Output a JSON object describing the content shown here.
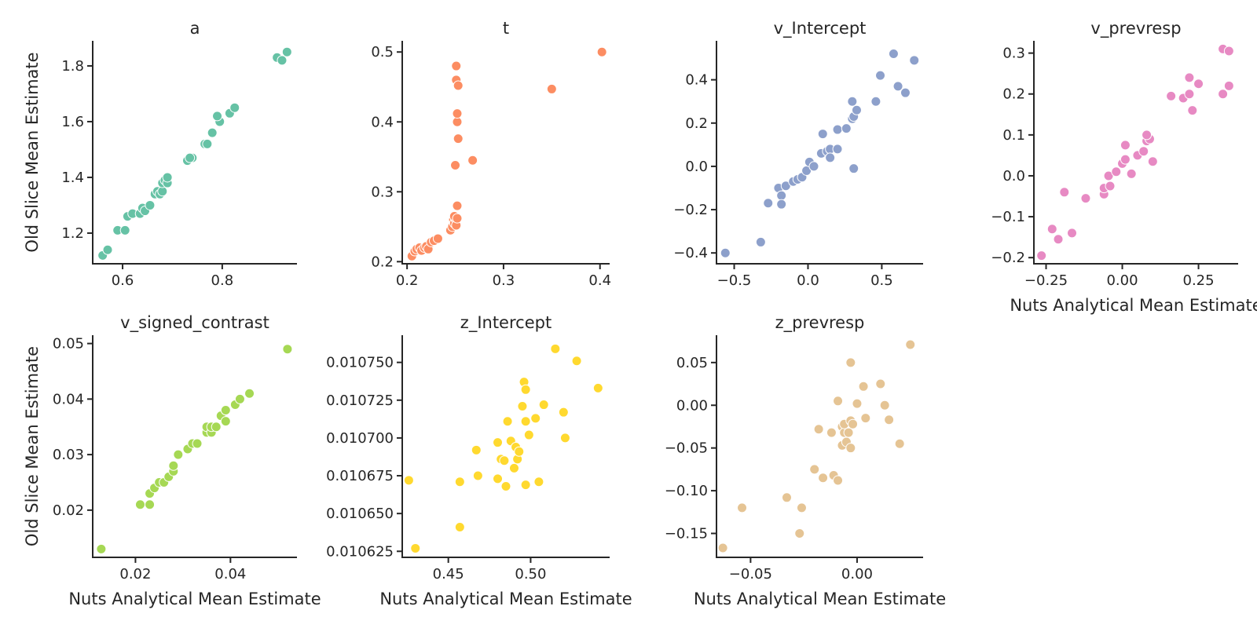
{
  "figure": {
    "ylabel": "Old Slice Mean Estimate",
    "xlabel": "Nuts Analytical Mean Estimate"
  },
  "chart_data": [
    {
      "type": "scatter",
      "title": "a",
      "color": "#66c2a5",
      "xlabel": "",
      "ylabel": "Old Slice Mean Estimate",
      "xlim": [
        0.54,
        0.95
      ],
      "ylim": [
        1.09,
        1.89
      ],
      "xticks": [
        0.6,
        0.8
      ],
      "xtick_labels": [
        "0.6",
        "0.8"
      ],
      "yticks": [
        1.2,
        1.4,
        1.6,
        1.8
      ],
      "ytick_labels": [
        "1.2",
        "1.4",
        "1.6",
        "1.8"
      ],
      "points": [
        [
          0.56,
          1.12
        ],
        [
          0.57,
          1.14
        ],
        [
          0.59,
          1.21
        ],
        [
          0.605,
          1.21
        ],
        [
          0.61,
          1.26
        ],
        [
          0.62,
          1.27
        ],
        [
          0.635,
          1.27
        ],
        [
          0.64,
          1.29
        ],
        [
          0.645,
          1.28
        ],
        [
          0.655,
          1.3
        ],
        [
          0.665,
          1.34
        ],
        [
          0.67,
          1.35
        ],
        [
          0.675,
          1.34
        ],
        [
          0.68,
          1.35
        ],
        [
          0.68,
          1.38
        ],
        [
          0.685,
          1.39
        ],
        [
          0.69,
          1.38
        ],
        [
          0.69,
          1.4
        ],
        [
          0.73,
          1.46
        ],
        [
          0.74,
          1.47
        ],
        [
          0.735,
          1.47
        ],
        [
          0.765,
          1.52
        ],
        [
          0.77,
          1.52
        ],
        [
          0.78,
          1.56
        ],
        [
          0.795,
          1.6
        ],
        [
          0.79,
          1.62
        ],
        [
          0.815,
          1.63
        ],
        [
          0.825,
          1.65
        ],
        [
          0.91,
          1.83
        ],
        [
          0.92,
          1.82
        ],
        [
          0.93,
          1.85
        ]
      ]
    },
    {
      "type": "scatter",
      "title": "t",
      "color": "#fc8d62",
      "xlabel": "",
      "ylabel": "",
      "xlim": [
        0.195,
        0.41
      ],
      "ylim": [
        0.197,
        0.516
      ],
      "xticks": [
        0.2,
        0.3,
        0.4
      ],
      "xtick_labels": [
        "0.2",
        "0.3",
        "0.4"
      ],
      "yticks": [
        0.2,
        0.3,
        0.4,
        0.5
      ],
      "ytick_labels": [
        "0.2",
        "0.3",
        "0.4",
        "0.5"
      ],
      "points": [
        [
          0.205,
          0.208
        ],
        [
          0.208,
          0.215
        ],
        [
          0.21,
          0.218
        ],
        [
          0.213,
          0.22
        ],
        [
          0.215,
          0.216
        ],
        [
          0.218,
          0.22
        ],
        [
          0.22,
          0.222
        ],
        [
          0.222,
          0.218
        ],
        [
          0.225,
          0.228
        ],
        [
          0.228,
          0.23
        ],
        [
          0.232,
          0.233
        ],
        [
          0.245,
          0.245
        ],
        [
          0.247,
          0.25
        ],
        [
          0.248,
          0.26
        ],
        [
          0.249,
          0.255
        ],
        [
          0.25,
          0.262
        ],
        [
          0.249,
          0.265
        ],
        [
          0.251,
          0.252
        ],
        [
          0.252,
          0.262
        ],
        [
          0.25,
          0.338
        ],
        [
          0.252,
          0.28
        ],
        [
          0.253,
          0.376
        ],
        [
          0.252,
          0.4
        ],
        [
          0.252,
          0.412
        ],
        [
          0.251,
          0.46
        ],
        [
          0.253,
          0.452
        ],
        [
          0.251,
          0.48
        ],
        [
          0.268,
          0.345
        ],
        [
          0.35,
          0.447
        ],
        [
          0.402,
          0.5
        ]
      ]
    },
    {
      "type": "scatter",
      "title": "v_Intercept",
      "color": "#8da0cb",
      "xlabel": "",
      "ylabel": "",
      "xlim": [
        -0.62,
        0.78
      ],
      "ylim": [
        -0.45,
        0.58
      ],
      "xticks": [
        -0.5,
        0.0,
        0.5
      ],
      "xtick_labels": [
        "−0.5",
        "0.0",
        "0.5"
      ],
      "yticks": [
        -0.4,
        -0.2,
        0.0,
        0.2,
        0.4
      ],
      "ytick_labels": [
        "−0.4",
        "−0.2",
        "0.0",
        "0.2",
        "0.4"
      ],
      "points": [
        [
          -0.56,
          -0.4
        ],
        [
          -0.32,
          -0.35
        ],
        [
          -0.27,
          -0.17
        ],
        [
          -0.2,
          -0.1
        ],
        [
          -0.18,
          -0.135
        ],
        [
          -0.18,
          -0.175
        ],
        [
          -0.15,
          -0.09
        ],
        [
          -0.1,
          -0.07
        ],
        [
          -0.07,
          -0.06
        ],
        [
          -0.04,
          -0.05
        ],
        [
          -0.01,
          -0.02
        ],
        [
          0.01,
          0.02
        ],
        [
          0.04,
          0.0
        ],
        [
          0.09,
          0.06
        ],
        [
          0.13,
          0.07
        ],
        [
          0.15,
          0.08
        ],
        [
          0.2,
          0.08
        ],
        [
          0.15,
          0.04
        ],
        [
          0.1,
          0.15
        ],
        [
          0.2,
          0.17
        ],
        [
          0.26,
          0.175
        ],
        [
          0.3,
          0.22
        ],
        [
          0.31,
          0.23
        ],
        [
          0.3,
          0.3
        ],
        [
          0.33,
          0.26
        ],
        [
          0.31,
          -0.01
        ],
        [
          0.46,
          0.3
        ],
        [
          0.49,
          0.42
        ],
        [
          0.58,
          0.52
        ],
        [
          0.61,
          0.37
        ],
        [
          0.66,
          0.34
        ],
        [
          0.72,
          0.49
        ]
      ]
    },
    {
      "type": "scatter",
      "title": "v_prevresp",
      "color": "#e78ac3",
      "xlabel": "Nuts Analytical Mean Estimate",
      "ylabel": "",
      "xlim": [
        -0.29,
        0.38
      ],
      "ylim": [
        -0.215,
        0.33
      ],
      "xticks": [
        -0.25,
        0.0,
        0.25
      ],
      "xtick_labels": [
        "−0.25",
        "0.00",
        "0.25"
      ],
      "yticks": [
        -0.2,
        -0.1,
        0.0,
        0.1,
        0.2,
        0.3
      ],
      "ytick_labels": [
        "−0.2",
        "−0.1",
        "0.0",
        "0.1",
        "0.2",
        "0.3"
      ],
      "points": [
        [
          -0.265,
          -0.195
        ],
        [
          -0.23,
          -0.13
        ],
        [
          -0.21,
          -0.155
        ],
        [
          -0.19,
          -0.04
        ],
        [
          -0.165,
          -0.14
        ],
        [
          -0.12,
          -0.055
        ],
        [
          -0.06,
          -0.045
        ],
        [
          -0.06,
          -0.03
        ],
        [
          -0.045,
          0.0
        ],
        [
          -0.04,
          -0.025
        ],
        [
          -0.02,
          0.01
        ],
        [
          0.0,
          0.03
        ],
        [
          0.01,
          0.075
        ],
        [
          0.01,
          0.04
        ],
        [
          0.03,
          0.005
        ],
        [
          0.05,
          0.05
        ],
        [
          0.07,
          0.06
        ],
        [
          0.08,
          0.085
        ],
        [
          0.09,
          0.09
        ],
        [
          0.08,
          0.1
        ],
        [
          0.1,
          0.035
        ],
        [
          0.16,
          0.195
        ],
        [
          0.2,
          0.19
        ],
        [
          0.22,
          0.2
        ],
        [
          0.22,
          0.24
        ],
        [
          0.23,
          0.16
        ],
        [
          0.25,
          0.225
        ],
        [
          0.33,
          0.31
        ],
        [
          0.35,
          0.305
        ],
        [
          0.33,
          0.2
        ],
        [
          0.35,
          0.22
        ]
      ]
    },
    {
      "type": "scatter",
      "title": "v_signed_contrast",
      "color": "#a6d854",
      "xlabel": "Nuts Analytical Mean Estimate",
      "ylabel": "Old Slice Mean Estimate",
      "xlim": [
        0.011,
        0.054
      ],
      "ylim": [
        0.0115,
        0.0515
      ],
      "xticks": [
        0.02,
        0.04
      ],
      "xtick_labels": [
        "0.02",
        "0.04"
      ],
      "yticks": [
        0.02,
        0.03,
        0.04,
        0.05
      ],
      "ytick_labels": [
        "0.02",
        "0.03",
        "0.04",
        "0.05"
      ],
      "points": [
        [
          0.0128,
          0.013
        ],
        [
          0.021,
          0.021
        ],
        [
          0.023,
          0.021
        ],
        [
          0.023,
          0.023
        ],
        [
          0.024,
          0.024
        ],
        [
          0.025,
          0.025
        ],
        [
          0.026,
          0.025
        ],
        [
          0.027,
          0.026
        ],
        [
          0.028,
          0.027
        ],
        [
          0.028,
          0.028
        ],
        [
          0.029,
          0.03
        ],
        [
          0.031,
          0.031
        ],
        [
          0.032,
          0.032
        ],
        [
          0.033,
          0.032
        ],
        [
          0.035,
          0.034
        ],
        [
          0.035,
          0.035
        ],
        [
          0.036,
          0.034
        ],
        [
          0.036,
          0.035
        ],
        [
          0.037,
          0.035
        ],
        [
          0.038,
          0.037
        ],
        [
          0.039,
          0.038
        ],
        [
          0.039,
          0.038
        ],
        [
          0.039,
          0.036
        ],
        [
          0.041,
          0.039
        ],
        [
          0.042,
          0.04
        ],
        [
          0.044,
          0.041
        ],
        [
          0.052,
          0.049
        ]
      ]
    },
    {
      "type": "scatter",
      "title": "z_Intercept",
      "color": "#ffd92f",
      "xlabel": "Nuts Analytical Mean Estimate",
      "ylabel": "",
      "xlim": [
        0.422,
        0.548
      ],
      "ylim": [
        0.010621,
        0.010768
      ],
      "xticks": [
        0.45,
        0.5
      ],
      "xtick_labels": [
        "0.45",
        "0.50"
      ],
      "yticks": [
        0.010625,
        0.01065,
        0.010675,
        0.0107,
        0.010725,
        0.01075
      ],
      "ytick_labels": [
        "0.010625",
        "0.010650",
        "0.010675",
        "0.010700",
        "0.010725",
        "0.010750"
      ],
      "points": [
        [
          0.426,
          0.010672
        ],
        [
          0.43,
          0.010627
        ],
        [
          0.457,
          0.010671
        ],
        [
          0.457,
          0.010641
        ],
        [
          0.467,
          0.010692
        ],
        [
          0.468,
          0.010675
        ],
        [
          0.48,
          0.010673
        ],
        [
          0.48,
          0.010697
        ],
        [
          0.482,
          0.010686
        ],
        [
          0.484,
          0.010685
        ],
        [
          0.485,
          0.010668
        ],
        [
          0.486,
          0.010711
        ],
        [
          0.488,
          0.010698
        ],
        [
          0.49,
          0.01068
        ],
        [
          0.491,
          0.010694
        ],
        [
          0.492,
          0.010686
        ],
        [
          0.493,
          0.010691
        ],
        [
          0.495,
          0.010721
        ],
        [
          0.496,
          0.010737
        ],
        [
          0.497,
          0.010732
        ],
        [
          0.497,
          0.010711
        ],
        [
          0.497,
          0.010669
        ],
        [
          0.499,
          0.010702
        ],
        [
          0.503,
          0.010713
        ],
        [
          0.505,
          0.010671
        ],
        [
          0.508,
          0.010722
        ],
        [
          0.515,
          0.010759
        ],
        [
          0.52,
          0.010717
        ],
        [
          0.521,
          0.0107
        ],
        [
          0.528,
          0.010751
        ],
        [
          0.541,
          0.010733
        ]
      ]
    },
    {
      "type": "scatter",
      "title": "z_prevresp",
      "color": "#e5c494",
      "xlabel": "Nuts Analytical Mean Estimate",
      "ylabel": "",
      "xlim": [
        -0.066,
        0.031
      ],
      "ylim": [
        -0.178,
        0.082
      ],
      "xticks": [
        -0.05,
        0.0
      ],
      "xtick_labels": [
        "−0.05",
        "0.00"
      ],
      "yticks": [
        -0.15,
        -0.1,
        -0.05,
        0.0,
        0.05
      ],
      "ytick_labels": [
        "−0.15",
        "−0.10",
        "−0.05",
        "0.00",
        "0.05"
      ],
      "points": [
        [
          -0.063,
          -0.167
        ],
        [
          -0.054,
          -0.12
        ],
        [
          -0.033,
          -0.108
        ],
        [
          -0.027,
          -0.15
        ],
        [
          -0.026,
          -0.12
        ],
        [
          -0.02,
          -0.075
        ],
        [
          -0.018,
          -0.028
        ],
        [
          -0.016,
          -0.085
        ],
        [
          -0.012,
          -0.032
        ],
        [
          -0.011,
          -0.082
        ],
        [
          -0.009,
          -0.088
        ],
        [
          -0.009,
          0.005
        ],
        [
          -0.007,
          -0.025
        ],
        [
          -0.007,
          -0.047
        ],
        [
          -0.006,
          -0.032
        ],
        [
          -0.006,
          -0.022
        ],
        [
          -0.005,
          -0.043
        ],
        [
          -0.004,
          -0.032
        ],
        [
          -0.003,
          -0.018
        ],
        [
          -0.003,
          -0.05
        ],
        [
          -0.002,
          -0.022
        ],
        [
          -0.003,
          0.05
        ],
        [
          0.0,
          0.002
        ],
        [
          0.003,
          0.022
        ],
        [
          0.004,
          -0.015
        ],
        [
          0.011,
          0.025
        ],
        [
          0.013,
          0.0
        ],
        [
          0.015,
          -0.017
        ],
        [
          0.02,
          -0.045
        ],
        [
          0.025,
          0.071
        ]
      ]
    }
  ]
}
